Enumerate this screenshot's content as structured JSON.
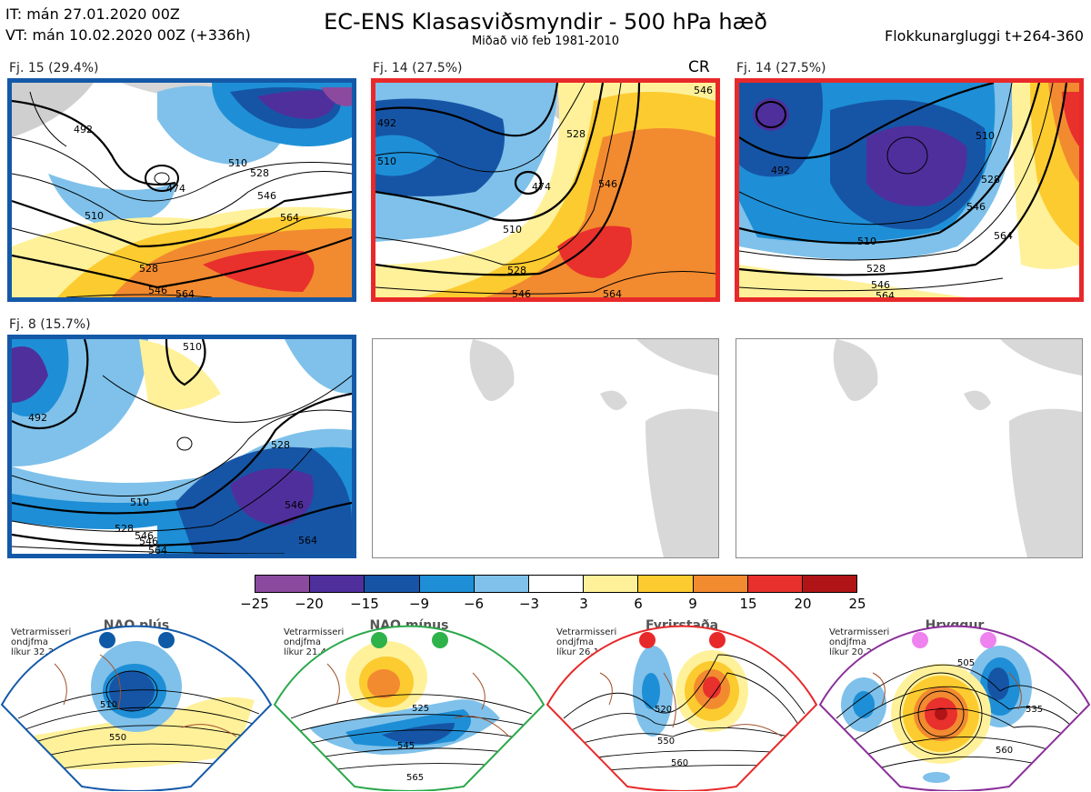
{
  "header": {
    "it_line": "IT: mán 27.01.2020 00Z",
    "vt_line": "VT: mán 10.02.2020 00Z  (+336h)",
    "title": "EC-ENS Klasasviðsmyndir - 500 hPa hæð",
    "subtitle": "Miðað við feb 1981-2010",
    "window": "Flokkunargluggi t+264-360"
  },
  "panels": [
    {
      "label": "Fj. 15 (29.4%)",
      "border": "#1459a8",
      "cr": ""
    },
    {
      "label": "Fj. 14 (27.5%)",
      "border": "#e8292a",
      "cr": "CR"
    },
    {
      "label": "Fj. 14 (27.5%)",
      "border": "#e8292a",
      "cr": ""
    },
    {
      "label": "Fj. 8 (15.7%)",
      "border": "#1459a8",
      "cr": ""
    }
  ],
  "contours": {
    "p1": [
      "474",
      "492",
      "510",
      "528",
      "546",
      "564",
      "528",
      "546",
      "564",
      "510"
    ],
    "p2": [
      "492",
      "474",
      "510",
      "528",
      "546",
      "564",
      "528",
      "546",
      "510",
      "546"
    ],
    "p3": [
      "492",
      "510",
      "528",
      "546",
      "564",
      "510",
      "528",
      "546",
      "564"
    ],
    "p4": [
      "510",
      "492",
      "510",
      "528",
      "546",
      "546",
      "528",
      "564",
      "546",
      "564"
    ]
  },
  "colorbar": {
    "colors": [
      "#8c4a9e",
      "#4f2f9c",
      "#1655a6",
      "#1e8fd6",
      "#7fc1ea",
      "#ffffff",
      "#fff19a",
      "#fccb2f",
      "#f28a30",
      "#e8302c",
      "#b01416"
    ],
    "ticks": [
      "−25",
      "−20",
      "−15",
      "−9",
      "−6",
      "−3",
      "3",
      "6",
      "9",
      "15",
      "20",
      "25"
    ]
  },
  "regimes": [
    {
      "name": "NAO plús",
      "line1": "Vetrarmisseri",
      "line2": "ondjfma",
      "line3": "líkur 32,3%",
      "color": "#1459a8",
      "dot": "#0e5aa7",
      "c1": "510",
      "c2": "550"
    },
    {
      "name": "NAO mínus",
      "line1": "Vetrarmisseri",
      "line2": "ondjfma",
      "line3": "líkur 21,4%",
      "color": "#2aa84a",
      "dot": "#2eb24a",
      "c1": "525",
      "c2": "545",
      "c3": "565"
    },
    {
      "name": "Fyrirstaða",
      "line1": "Vetrarmisseri",
      "line2": "ondjfma",
      "line3": "líkur 26,1%",
      "color": "#e8292a",
      "dot": "#e8292a",
      "c1": "520",
      "c2": "550",
      "c3": "560"
    },
    {
      "name": "Hryggur",
      "line1": "Vetrarmisseri",
      "line2": "ondjfma",
      "line3": "líkur 20,2%",
      "color": "#8a2e9a",
      "dot": "#ee82ee",
      "c1": "505",
      "c2": "535",
      "c3": "560"
    }
  ]
}
